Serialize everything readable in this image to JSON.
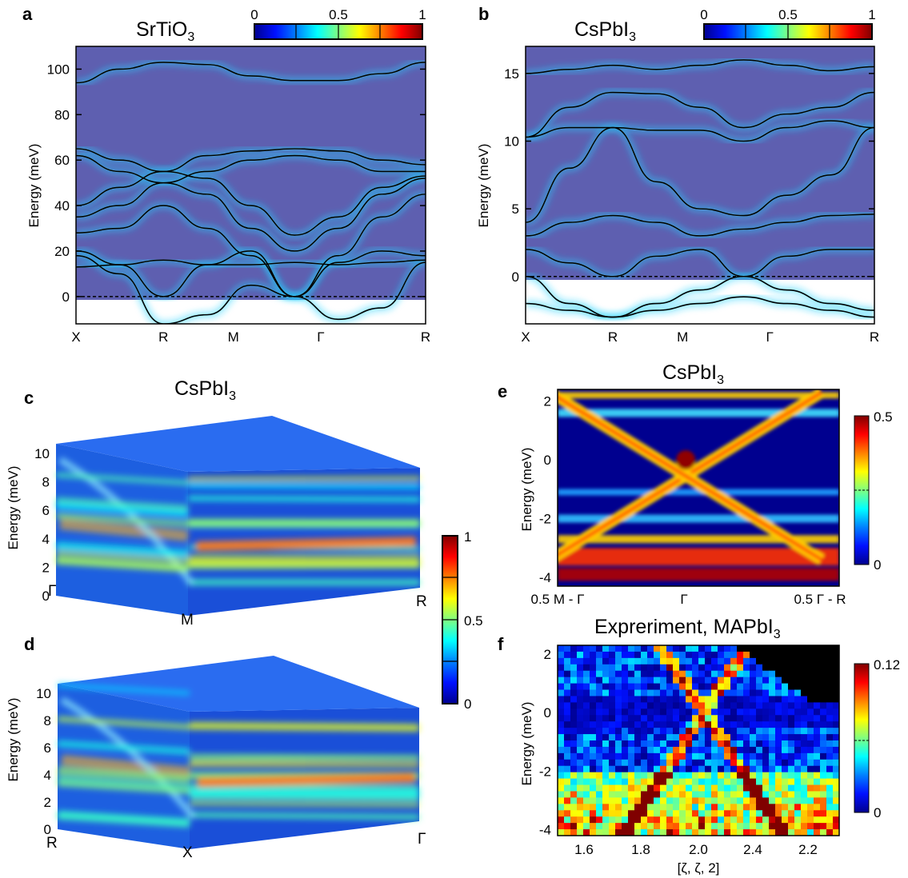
{
  "colors": {
    "cmap": [
      "#00008f",
      "#0010ff",
      "#0080ff",
      "#00ffff",
      "#80ff80",
      "#ffff00",
      "#ff8000",
      "#ff0000",
      "#800000"
    ],
    "panel_bg": "#5e5fb0",
    "band_line": "#000000"
  },
  "chart_data": [
    {
      "id": "a",
      "type": "line",
      "letter": "a",
      "title_main": "SrTiO",
      "title_sub": "3",
      "ylabel": "Energy (meV)",
      "ylim": [
        -12,
        110
      ],
      "yticks": [
        "0",
        "20",
        "40",
        "60",
        "80",
        "100"
      ],
      "ytick_values": [
        0,
        20,
        40,
        60,
        80,
        100
      ],
      "xticks": [
        "X",
        "R",
        "M",
        "Γ",
        "R"
      ],
      "colorbar": {
        "ticks": [
          "0",
          "0.5",
          "1"
        ]
      },
      "zero_line": 0,
      "series": [
        {
          "values": [
            94,
            100,
            103,
            102,
            97,
            95,
            95,
            98,
            103
          ]
        },
        {
          "values": [
            65,
            60,
            55,
            62,
            64,
            65,
            64,
            60,
            58
          ]
        },
        {
          "values": [
            62,
            55,
            50,
            55,
            60,
            62,
            60,
            55,
            55
          ]
        },
        {
          "values": [
            40,
            48,
            55,
            52,
            40,
            27,
            35,
            48,
            53
          ]
        },
        {
          "values": [
            35,
            40,
            50,
            45,
            30,
            20,
            30,
            45,
            52
          ]
        },
        {
          "values": [
            28,
            30,
            40,
            30,
            18,
            0,
            18,
            35,
            45
          ]
        },
        {
          "values": [
            20,
            14,
            0,
            14,
            20,
            0,
            15,
            20,
            18
          ]
        },
        {
          "values": [
            18,
            10,
            -12,
            -8,
            5,
            0,
            -10,
            -5,
            15
          ]
        },
        {
          "values": [
            13,
            14,
            16,
            14,
            14,
            15,
            14,
            15,
            16
          ]
        }
      ]
    },
    {
      "id": "b",
      "type": "line",
      "letter": "b",
      "title_main": "CsPbI",
      "title_sub": "3",
      "ylabel": "Energy (meV)",
      "ylim": [
        -3.5,
        17
      ],
      "yticks": [
        "0",
        "5",
        "10",
        "15"
      ],
      "ytick_values": [
        0,
        5,
        10,
        15
      ],
      "xticks": [
        "X",
        "R",
        "M",
        "Γ",
        "R"
      ],
      "colorbar": {
        "ticks": [
          "0",
          "0.5",
          "1"
        ]
      },
      "zero_line": 0,
      "series": [
        {
          "values": [
            15,
            15.3,
            15.6,
            15.3,
            15.6,
            16,
            15.6,
            15.2,
            15.5
          ]
        },
        {
          "values": [
            10.3,
            12.5,
            13.6,
            13.5,
            12.5,
            11,
            12,
            12.5,
            13.6
          ]
        },
        {
          "values": [
            10.3,
            11,
            11,
            10.8,
            10.8,
            10,
            11,
            11.5,
            11
          ]
        },
        {
          "values": [
            4,
            8,
            11,
            7,
            5,
            4.5,
            6,
            7.5,
            11
          ]
        },
        {
          "values": [
            3,
            4,
            4.5,
            4,
            3,
            3.5,
            4,
            4.5,
            4.6
          ]
        },
        {
          "values": [
            2,
            1,
            0,
            1.5,
            2,
            0,
            1.5,
            2,
            2
          ]
        },
        {
          "values": [
            0,
            -2,
            -3,
            -2,
            -1,
            0,
            -1,
            -2,
            -2.5
          ]
        },
        {
          "values": [
            -2,
            -2.5,
            -3,
            -2.5,
            -2,
            -1.5,
            -2,
            -2.5,
            -3
          ]
        }
      ]
    },
    {
      "id": "c",
      "type": "heatmap",
      "letter": "c",
      "title_main": "CsPbI",
      "title_sub": "3",
      "ylabel": "Energy (meV)",
      "yticks": [
        "0",
        "2",
        "4",
        "6",
        "8",
        "10"
      ],
      "corner_labels": [
        "Γ",
        "M",
        "R"
      ]
    },
    {
      "id": "d",
      "type": "heatmap",
      "letter": "d",
      "ylabel": "Energy (meV)",
      "yticks": [
        "0",
        "2",
        "4",
        "6",
        "8",
        "10"
      ],
      "corner_labels": [
        "R",
        "X",
        "Γ"
      ]
    },
    {
      "id": "e",
      "type": "heatmap",
      "letter": "e",
      "title_main": "CsPbI",
      "title_sub": "3",
      "ylabel": "Energy (meV)",
      "ylim": [
        -4.3,
        2.4
      ],
      "yticks": [
        "2",
        "0",
        "-2",
        "-4"
      ],
      "ytick_values": [
        2,
        0,
        -2,
        -4
      ],
      "xticks": [
        "0.5 M - Γ",
        "Γ",
        "0.5 Γ - R"
      ],
      "colorbar": {
        "ticks": [
          "0.5",
          "0"
        ]
      }
    },
    {
      "id": "f",
      "type": "heatmap",
      "letter": "f",
      "title_main": "Expreriment, MAPbI",
      "title_sub": "3",
      "ylabel": "Energy (meV)",
      "ylim": [
        -4.2,
        2.3
      ],
      "yticks": [
        "2",
        "0",
        "-2",
        "-4"
      ],
      "ytick_values": [
        2,
        0,
        -2,
        -4
      ],
      "xticks": [
        "1.6",
        "1.8",
        "2.0",
        "2.4",
        "2.2"
      ],
      "xlabel": "[ζ, ζ, 2]",
      "colorbar": {
        "ticks": [
          "0.12",
          "0"
        ]
      }
    }
  ],
  "shared_colorbar": {
    "ticks": [
      "1",
      "0.5",
      "0"
    ]
  }
}
